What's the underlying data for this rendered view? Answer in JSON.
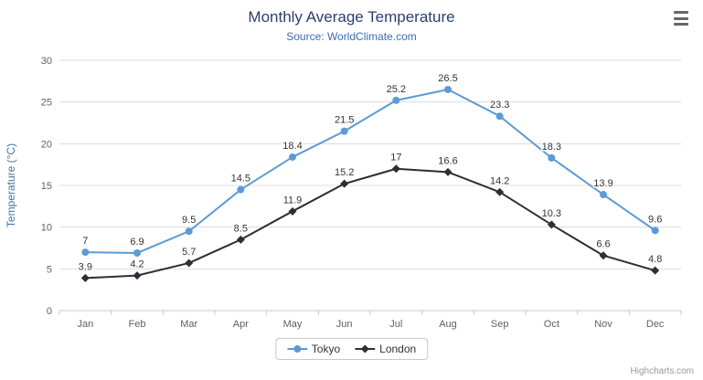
{
  "header": {
    "title": "Monthly Average Temperature",
    "subtitle": "Source: WorldClimate.com"
  },
  "credits": "Highcharts.com",
  "colors": {
    "title": "#2a3f6f",
    "subtitle": "#3d6db5",
    "axis_title": "#4572a7",
    "tick_label": "#606060",
    "grid": "#dcdcdc",
    "axis_line": "#c3cbd6",
    "data_label": "#333333",
    "tokyo": "#5b9bd5",
    "london": "#2b2f36"
  },
  "chart_data": {
    "type": "line",
    "title": "Monthly Average Temperature",
    "subtitle": "Source: WorldClimate.com",
    "categories": [
      "Jan",
      "Feb",
      "Mar",
      "Apr",
      "May",
      "Jun",
      "Jul",
      "Aug",
      "Sep",
      "Oct",
      "Nov",
      "Dec"
    ],
    "series": [
      {
        "name": "Tokyo",
        "color": "#5b9bd5",
        "marker": "circle",
        "values": [
          7,
          6.9,
          9.5,
          14.5,
          18.4,
          21.5,
          25.2,
          26.5,
          23.3,
          18.3,
          13.9,
          9.6
        ]
      },
      {
        "name": "London",
        "color": "#2b2f36",
        "marker": "diamond",
        "values": [
          3.9,
          4.2,
          5.7,
          8.5,
          11.9,
          15.2,
          17,
          16.6,
          14.2,
          10.3,
          6.6,
          4.8
        ]
      }
    ],
    "xlabel": "",
    "ylabel": "Temperature (°C)",
    "ylim": [
      0,
      30
    ],
    "ytick_step": 5,
    "grid": true,
    "data_labels": true,
    "legend_position": "bottom"
  },
  "legend": {
    "items": [
      {
        "label": "Tokyo"
      },
      {
        "label": "London"
      }
    ]
  }
}
